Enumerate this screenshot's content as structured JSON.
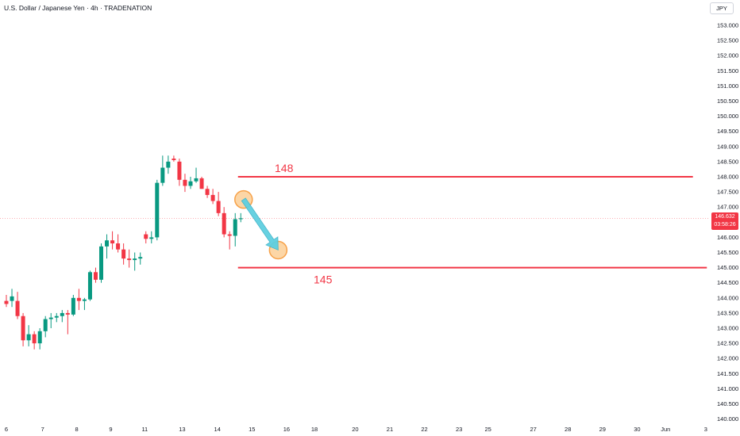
{
  "header": {
    "title": "U.S. Dollar / Japanese Yen · 4h · TRADENATION"
  },
  "currency": "JPY",
  "last_price": {
    "value": "146.632",
    "countdown": "03:58:26"
  },
  "colors": {
    "up": "#089981",
    "down": "#f23645",
    "level_line": "#f23645",
    "arrow": "#5fcfe0",
    "marker_fill": "#fcd6a6",
    "marker_stroke": "#f7a24a",
    "axis_text": "#131722"
  },
  "chart_data": {
    "type": "candlestick",
    "title": "U.S. Dollar / Japanese Yen · 4h · TRADENATION",
    "y_axis": {
      "position": "right",
      "ylim": [
        139.8,
        153.6
      ],
      "ticks": [
        "153.000",
        "152.500",
        "152.000",
        "151.500",
        "151.000",
        "150.500",
        "150.000",
        "149.500",
        "149.000",
        "148.500",
        "148.000",
        "147.500",
        "147.000",
        "146.500",
        "146.000",
        "145.500",
        "145.000",
        "144.500",
        "144.000",
        "143.500",
        "143.000",
        "142.500",
        "142.000",
        "141.500",
        "141.000",
        "140.500",
        "140.000"
      ]
    },
    "x_axis": {
      "ticks": [
        {
          "label": "6",
          "bar": 0
        },
        {
          "label": "7",
          "bar": 6.5
        },
        {
          "label": "8",
          "bar": 12.6
        },
        {
          "label": "9",
          "bar": 18.7
        },
        {
          "label": "11",
          "bar": 24.8
        },
        {
          "label": "13",
          "bar": 31.5
        },
        {
          "label": "14",
          "bar": 37.8
        },
        {
          "label": "15",
          "bar": 44
        },
        {
          "label": "16",
          "bar": 50.2
        },
        {
          "label": "18",
          "bar": 55.2
        },
        {
          "label": "20",
          "bar": 62.5
        },
        {
          "label": "21",
          "bar": 68.7
        },
        {
          "label": "22",
          "bar": 74.9
        },
        {
          "label": "23",
          "bar": 81.1
        },
        {
          "label": "25",
          "bar": 86.3
        },
        {
          "label": "27",
          "bar": 94.4
        },
        {
          "label": "28",
          "bar": 100.6
        },
        {
          "label": "29",
          "bar": 106.8
        },
        {
          "label": "30",
          "bar": 113
        },
        {
          "label": "Jun",
          "bar": 118.1
        },
        {
          "label": "3",
          "bar": 125.3
        }
      ]
    },
    "candles": [
      {
        "o": 143.9,
        "h": 144.1,
        "l": 143.7,
        "c": 143.8
      },
      {
        "o": 143.9,
        "h": 144.3,
        "l": 143.7,
        "c": 144.05
      },
      {
        "o": 143.9,
        "h": 144.2,
        "l": 143.3,
        "c": 143.4
      },
      {
        "o": 143.4,
        "h": 143.5,
        "l": 142.4,
        "c": 142.6
      },
      {
        "o": 142.6,
        "h": 143.1,
        "l": 142.4,
        "c": 142.8
      },
      {
        "o": 142.8,
        "h": 142.9,
        "l": 142.3,
        "c": 142.5
      },
      {
        "o": 142.5,
        "h": 143.0,
        "l": 142.3,
        "c": 142.9
      },
      {
        "o": 142.9,
        "h": 143.4,
        "l": 142.7,
        "c": 143.3
      },
      {
        "o": 143.3,
        "h": 143.5,
        "l": 143.0,
        "c": 143.35
      },
      {
        "o": 143.35,
        "h": 143.5,
        "l": 143.2,
        "c": 143.4
      },
      {
        "o": 143.4,
        "h": 143.6,
        "l": 143.2,
        "c": 143.5
      },
      {
        "o": 143.5,
        "h": 143.6,
        "l": 142.8,
        "c": 143.45
      },
      {
        "o": 143.45,
        "h": 144.1,
        "l": 143.4,
        "c": 144.0
      },
      {
        "o": 144.0,
        "h": 144.3,
        "l": 143.6,
        "c": 143.9
      },
      {
        "o": 143.9,
        "h": 144.0,
        "l": 143.6,
        "c": 143.95
      },
      {
        "o": 143.95,
        "h": 144.9,
        "l": 143.9,
        "c": 144.85
      },
      {
        "o": 144.85,
        "h": 145.0,
        "l": 144.5,
        "c": 144.6
      },
      {
        "o": 144.6,
        "h": 145.8,
        "l": 144.5,
        "c": 145.7
      },
      {
        "o": 145.7,
        "h": 146.1,
        "l": 145.3,
        "c": 145.9
      },
      {
        "o": 145.9,
        "h": 146.2,
        "l": 145.6,
        "c": 145.8
      },
      {
        "o": 145.8,
        "h": 146.1,
        "l": 145.5,
        "c": 145.6
      },
      {
        "o": 145.6,
        "h": 145.8,
        "l": 145.1,
        "c": 145.3
      },
      {
        "o": 145.3,
        "h": 145.6,
        "l": 145.0,
        "c": 145.25
      },
      {
        "o": 145.25,
        "h": 145.5,
        "l": 144.9,
        "c": 145.3
      },
      {
        "o": 145.3,
        "h": 145.5,
        "l": 145.1,
        "c": 145.35
      },
      {
        "o": 146.1,
        "h": 146.2,
        "l": 145.8,
        "c": 145.95
      },
      {
        "o": 145.95,
        "h": 146.2,
        "l": 145.8,
        "c": 146.0
      },
      {
        "o": 146.0,
        "h": 147.9,
        "l": 145.9,
        "c": 147.8
      },
      {
        "o": 147.8,
        "h": 148.7,
        "l": 147.7,
        "c": 148.3
      },
      {
        "o": 148.3,
        "h": 148.7,
        "l": 148.1,
        "c": 148.5
      },
      {
        "o": 148.6,
        "h": 148.7,
        "l": 148.5,
        "c": 148.55
      },
      {
        "o": 148.5,
        "h": 148.6,
        "l": 147.7,
        "c": 147.9
      },
      {
        "o": 147.9,
        "h": 148.1,
        "l": 147.5,
        "c": 147.7
      },
      {
        "o": 147.7,
        "h": 148.0,
        "l": 147.6,
        "c": 147.85
      },
      {
        "o": 147.85,
        "h": 148.3,
        "l": 147.8,
        "c": 147.95
      },
      {
        "o": 147.95,
        "h": 148.0,
        "l": 147.6,
        "c": 147.6
      },
      {
        "o": 147.6,
        "h": 147.7,
        "l": 147.3,
        "c": 147.4
      },
      {
        "o": 147.4,
        "h": 147.6,
        "l": 147.1,
        "c": 147.2
      },
      {
        "o": 147.2,
        "h": 147.5,
        "l": 146.7,
        "c": 146.8
      },
      {
        "o": 146.8,
        "h": 147.0,
        "l": 146.0,
        "c": 146.1
      },
      {
        "o": 146.1,
        "h": 146.2,
        "l": 145.6,
        "c": 146.05
      },
      {
        "o": 146.05,
        "h": 146.8,
        "l": 145.7,
        "c": 146.6
      },
      {
        "o": 146.6,
        "h": 146.8,
        "l": 146.5,
        "c": 146.63
      }
    ],
    "levels": [
      {
        "label": "148",
        "price": 148.0,
        "from_bar": 41.5,
        "to_bar": 123
      },
      {
        "label": "145",
        "price": 145.0,
        "from_bar": 41.5,
        "to_bar": 125.5
      }
    ],
    "last_price": 146.632,
    "annotations": {
      "markers": [
        {
          "bar": 42.5,
          "price": 147.25
        },
        {
          "bar": 48.7,
          "price": 145.58
        }
      ],
      "arrow": {
        "from": {
          "bar": 42.5,
          "price": 147.25
        },
        "to": {
          "bar": 48.7,
          "price": 145.58
        }
      }
    }
  }
}
